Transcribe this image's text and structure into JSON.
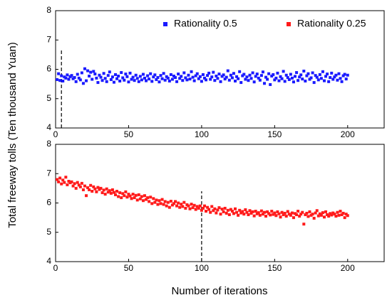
{
  "xlabel": "Number of iterations",
  "ylabel": "Total freeway tolls (Ten thousand Yuan)",
  "chart_data": [
    {
      "type": "scatter",
      "xlim": [
        0,
        225
      ],
      "ylim": [
        4,
        8
      ],
      "xticks": [
        0,
        50,
        100,
        150,
        200
      ],
      "yticks": [
        4,
        5,
        6,
        7,
        8
      ],
      "vline": {
        "x": 4,
        "y": [
          4,
          6.7
        ]
      },
      "series": [
        {
          "name": "Rationality 0.5",
          "color": "#1a1aff",
          "x": [
            1,
            2,
            3,
            4,
            5,
            6,
            7,
            8,
            9,
            10,
            11,
            12,
            13,
            14,
            15,
            16,
            17,
            18,
            19,
            20,
            21,
            22,
            23,
            24,
            25,
            26,
            27,
            28,
            29,
            30,
            31,
            32,
            33,
            34,
            35,
            36,
            37,
            38,
            39,
            40,
            41,
            42,
            43,
            44,
            45,
            46,
            47,
            48,
            49,
            50,
            51,
            52,
            53,
            54,
            55,
            56,
            57,
            58,
            59,
            60,
            61,
            62,
            63,
            64,
            65,
            66,
            67,
            68,
            69,
            70,
            71,
            72,
            73,
            74,
            75,
            76,
            77,
            78,
            79,
            80,
            81,
            82,
            83,
            84,
            85,
            86,
            87,
            88,
            89,
            90,
            91,
            92,
            93,
            94,
            95,
            96,
            97,
            98,
            99,
            100,
            101,
            102,
            103,
            104,
            105,
            106,
            107,
            108,
            109,
            110,
            111,
            112,
            113,
            114,
            115,
            116,
            117,
            118,
            119,
            120,
            121,
            122,
            123,
            124,
            125,
            126,
            127,
            128,
            129,
            130,
            131,
            132,
            133,
            134,
            135,
            136,
            137,
            138,
            139,
            140,
            141,
            142,
            143,
            144,
            145,
            146,
            147,
            148,
            149,
            150,
            151,
            152,
            153,
            154,
            155,
            156,
            157,
            158,
            159,
            160,
            161,
            162,
            163,
            164,
            165,
            166,
            167,
            168,
            169,
            170,
            171,
            172,
            173,
            174,
            175,
            176,
            177,
            178,
            179,
            180,
            181,
            182,
            183,
            184,
            185,
            186,
            187,
            188,
            189,
            190,
            191,
            192,
            193,
            194,
            195,
            196,
            197,
            198,
            199,
            200
          ],
          "values": [
            5.65,
            5.85,
            5.62,
            5.78,
            5.6,
            5.74,
            5.7,
            5.81,
            5.66,
            5.75,
            5.79,
            5.68,
            5.72,
            5.58,
            5.83,
            5.7,
            5.64,
            5.88,
            5.52,
            6.02,
            5.61,
            5.95,
            5.77,
            5.9,
            5.66,
            5.93,
            5.84,
            5.7,
            5.55,
            5.8,
            5.73,
            5.62,
            5.86,
            5.69,
            5.58,
            5.79,
            5.91,
            5.65,
            5.74,
            5.56,
            5.82,
            5.68,
            5.77,
            5.6,
            5.89,
            5.71,
            5.63,
            5.84,
            5.75,
            5.57,
            5.87,
            5.66,
            5.73,
            5.62,
            5.8,
            5.69,
            5.58,
            5.76,
            5.64,
            5.83,
            5.7,
            5.61,
            5.78,
            5.67,
            5.85,
            5.59,
            5.74,
            5.81,
            5.65,
            5.72,
            5.57,
            5.79,
            5.68,
            5.86,
            5.63,
            5.75,
            5.7,
            5.6,
            5.82,
            5.66,
            5.77,
            5.72,
            5.58,
            5.84,
            5.69,
            5.76,
            5.62,
            5.88,
            5.71,
            5.64,
            5.8,
            5.67,
            5.92,
            5.73,
            5.61,
            5.78,
            5.85,
            5.68,
            5.75,
            5.59,
            5.82,
            5.7,
            5.64,
            5.79,
            5.87,
            5.66,
            5.74,
            5.9,
            5.62,
            5.77,
            5.69,
            5.84,
            5.58,
            5.76,
            5.81,
            5.67,
            5.73,
            5.95,
            5.63,
            5.8,
            5.71,
            5.86,
            5.6,
            5.75,
            5.68,
            5.92,
            5.55,
            5.78,
            5.83,
            5.66,
            5.74,
            5.62,
            5.8,
            5.69,
            5.88,
            5.57,
            5.76,
            5.84,
            5.7,
            5.63,
            5.79,
            5.91,
            5.52,
            5.73,
            5.66,
            5.85,
            5.48,
            5.77,
            5.82,
            5.64,
            5.7,
            5.87,
            5.61,
            5.75,
            5.68,
            5.93,
            5.59,
            5.8,
            5.72,
            5.65,
            5.83,
            5.7,
            5.57,
            5.76,
            5.89,
            5.62,
            5.74,
            5.81,
            5.67,
            5.94,
            5.6,
            5.78,
            5.85,
            5.66,
            5.71,
            5.88,
            5.55,
            5.79,
            5.73,
            5.64,
            5.82,
            5.69,
            5.92,
            5.61,
            5.76,
            5.84,
            5.58,
            5.72,
            5.87,
            5.66,
            5.74,
            5.8,
            5.63,
            5.85,
            5.69,
            5.58,
            5.78,
            5.83,
            5.67,
            5.8
          ]
        }
      ]
    },
    {
      "type": "scatter",
      "xlim": [
        0,
        225
      ],
      "ylim": [
        4,
        8
      ],
      "xticks": [
        0,
        50,
        100,
        150,
        200
      ],
      "yticks": [
        4,
        5,
        6,
        7,
        8
      ],
      "vline": {
        "x": 100,
        "y": [
          4,
          6.4
        ]
      },
      "series": [
        {
          "name": "Rationality 0.25",
          "color": "#ff1a1a",
          "x": [
            1,
            2,
            3,
            4,
            5,
            6,
            7,
            8,
            9,
            10,
            11,
            12,
            13,
            14,
            15,
            16,
            17,
            18,
            19,
            20,
            21,
            22,
            23,
            24,
            25,
            26,
            27,
            28,
            29,
            30,
            31,
            32,
            33,
            34,
            35,
            36,
            37,
            38,
            39,
            40,
            41,
            42,
            43,
            44,
            45,
            46,
            47,
            48,
            49,
            50,
            51,
            52,
            53,
            54,
            55,
            56,
            57,
            58,
            59,
            60,
            61,
            62,
            63,
            64,
            65,
            66,
            67,
            68,
            69,
            70,
            71,
            72,
            73,
            74,
            75,
            76,
            77,
            78,
            79,
            80,
            81,
            82,
            83,
            84,
            85,
            86,
            87,
            88,
            89,
            90,
            91,
            92,
            93,
            94,
            95,
            96,
            97,
            98,
            99,
            100,
            101,
            102,
            103,
            104,
            105,
            106,
            107,
            108,
            109,
            110,
            111,
            112,
            113,
            114,
            115,
            116,
            117,
            118,
            119,
            120,
            121,
            122,
            123,
            124,
            125,
            126,
            127,
            128,
            129,
            130,
            131,
            132,
            133,
            134,
            135,
            136,
            137,
            138,
            139,
            140,
            141,
            142,
            143,
            144,
            145,
            146,
            147,
            148,
            149,
            150,
            151,
            152,
            153,
            154,
            155,
            156,
            157,
            158,
            159,
            160,
            161,
            162,
            163,
            164,
            165,
            166,
            167,
            168,
            169,
            170,
            171,
            172,
            173,
            174,
            175,
            176,
            177,
            178,
            179,
            180,
            181,
            182,
            183,
            184,
            185,
            186,
            187,
            188,
            189,
            190,
            191,
            192,
            193,
            194,
            195,
            196,
            197,
            198,
            199,
            200
          ],
          "values": [
            6.8,
            6.72,
            6.85,
            6.65,
            6.78,
            6.7,
            6.88,
            6.62,
            6.74,
            6.69,
            6.72,
            6.58,
            6.66,
            6.5,
            6.7,
            6.61,
            6.55,
            6.67,
            6.45,
            6.58,
            6.25,
            6.52,
            6.45,
            6.6,
            6.4,
            6.55,
            6.48,
            6.38,
            6.53,
            6.46,
            6.5,
            6.35,
            6.44,
            6.3,
            6.48,
            6.37,
            6.42,
            6.33,
            6.45,
            6.36,
            6.28,
            6.4,
            6.22,
            6.35,
            6.18,
            6.32,
            6.25,
            6.38,
            6.2,
            6.3,
            6.24,
            6.15,
            6.3,
            6.18,
            6.26,
            6.1,
            6.28,
            6.14,
            6.22,
            6.08,
            6.25,
            6.12,
            6.18,
            6.05,
            6.2,
            5.98,
            6.15,
            6.02,
            6.1,
            5.95,
            6.08,
            5.98,
            6.12,
            5.95,
            6.05,
            5.9,
            6.02,
            5.85,
            6.06,
            5.93,
            5.98,
            6.05,
            5.9,
            6.0,
            5.85,
            5.96,
            5.88,
            6.02,
            5.82,
            5.94,
            5.9,
            5.8,
            5.96,
            5.84,
            5.92,
            5.78,
            5.88,
            5.82,
            5.9,
            5.75,
            5.82,
            5.9,
            5.72,
            5.85,
            5.78,
            5.68,
            5.88,
            5.74,
            5.8,
            5.66,
            5.76,
            5.84,
            5.62,
            5.79,
            5.7,
            5.82,
            5.65,
            5.75,
            5.6,
            5.78,
            5.72,
            5.64,
            5.8,
            5.68,
            5.58,
            5.75,
            5.66,
            5.71,
            5.62,
            5.77,
            5.68,
            5.6,
            5.74,
            5.65,
            5.7,
            5.56,
            5.72,
            5.63,
            5.67,
            5.58,
            5.73,
            5.62,
            5.68,
            5.55,
            5.7,
            5.64,
            5.59,
            5.72,
            5.61,
            5.66,
            5.57,
            5.7,
            5.63,
            5.52,
            5.68,
            5.6,
            5.65,
            5.55,
            5.71,
            5.62,
            5.58,
            5.66,
            5.5,
            5.64,
            5.6,
            5.72,
            5.55,
            5.62,
            5.68,
            5.28,
            5.6,
            5.65,
            5.54,
            5.7,
            5.58,
            5.62,
            5.48,
            5.66,
            5.74,
            5.56,
            5.63,
            5.58,
            5.67,
            5.52,
            5.7,
            5.6,
            5.55,
            5.64,
            5.59,
            5.66,
            5.62,
            5.55,
            5.68,
            5.58,
            5.72,
            5.6,
            5.65,
            5.5,
            5.62,
            5.57
          ]
        }
      ]
    }
  ]
}
